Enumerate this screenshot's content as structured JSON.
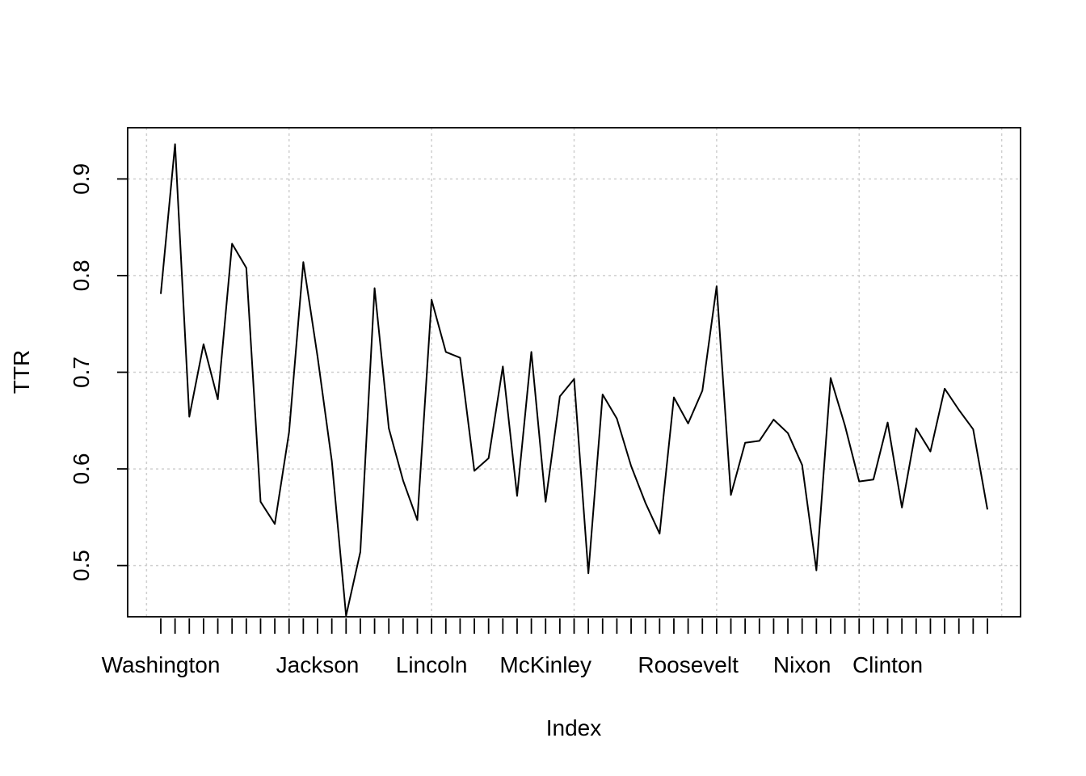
{
  "chart_data": {
    "type": "line",
    "xlabel": "Index",
    "ylabel": "TTR",
    "title": "",
    "x_range": [
      1,
      58
    ],
    "ylim": [
      0.447,
      0.953
    ],
    "y_ticks": [
      0.5,
      0.6,
      0.7,
      0.8,
      0.9
    ],
    "y_tick_labels": [
      "0.5",
      "0.6",
      "0.7",
      "0.8",
      "0.9"
    ],
    "x_tick_count": 59,
    "x_tick_labels": [
      {
        "index": 1,
        "label": "Washington"
      },
      {
        "index": 12,
        "label": "Jackson"
      },
      {
        "index": 20,
        "label": "Lincoln"
      },
      {
        "index": 28,
        "label": "McKinley"
      },
      {
        "index": 38,
        "label": "Roosevelt"
      },
      {
        "index": 46,
        "label": "Nixon"
      },
      {
        "index": 52,
        "label": "Clinton"
      }
    ],
    "grid": true,
    "series": [
      {
        "values": [
          0.781,
          0.936,
          0.654,
          0.729,
          0.672,
          0.833,
          0.808,
          0.566,
          0.543,
          0.638,
          0.814,
          0.716,
          0.608,
          0.448,
          0.514,
          0.787,
          0.642,
          0.588,
          0.547,
          0.775,
          0.721,
          0.715,
          0.598,
          0.611,
          0.706,
          0.572,
          0.721,
          0.566,
          0.675,
          0.693,
          0.492,
          0.677,
          0.652,
          0.603,
          0.565,
          0.533,
          0.674,
          0.647,
          0.681,
          0.789,
          0.573,
          0.627,
          0.629,
          0.651,
          0.637,
          0.604,
          0.495,
          0.694,
          0.645,
          0.587,
          0.589,
          0.648,
          0.56,
          0.642,
          0.618,
          0.683,
          0.661,
          0.641,
          0.558
        ]
      }
    ]
  }
}
